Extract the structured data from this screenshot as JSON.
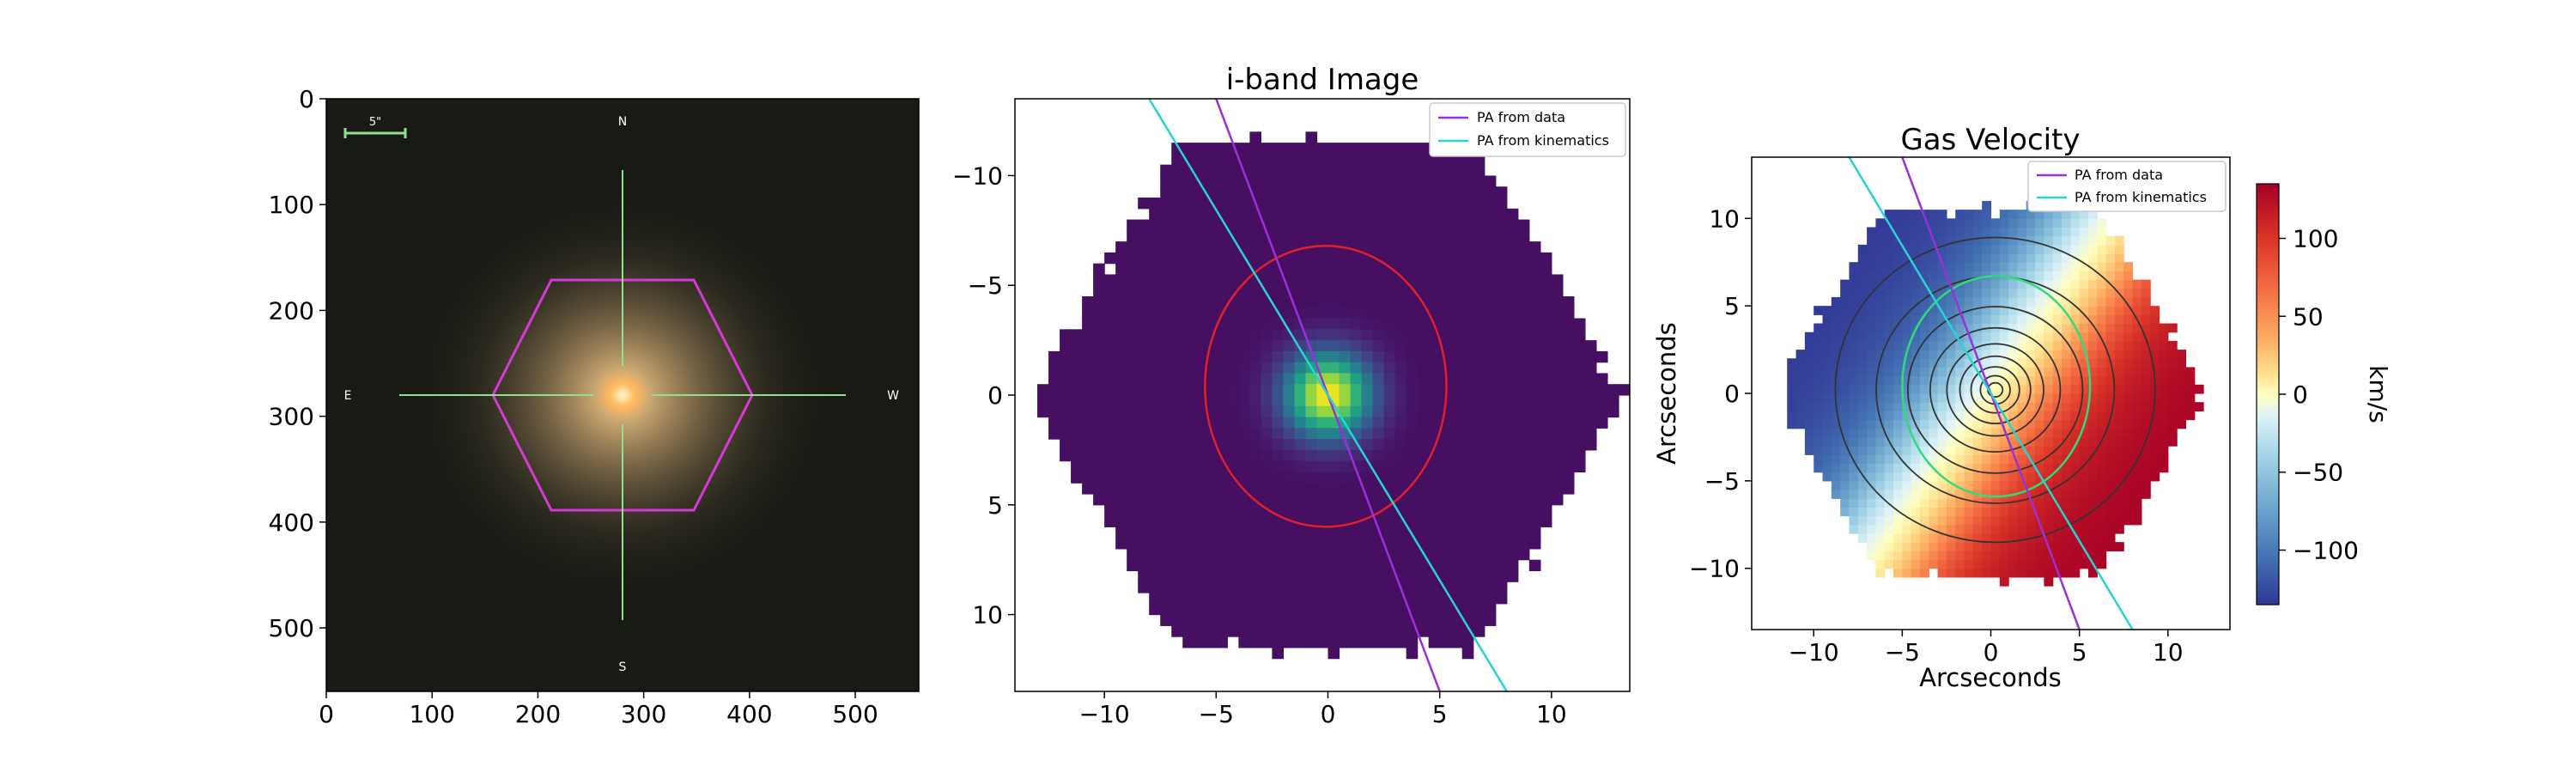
{
  "chart_data": [
    {
      "type": "image",
      "title": "",
      "x_ticks": [
        0,
        100,
        200,
        300,
        400,
        500
      ],
      "y_ticks": [
        0,
        100,
        200,
        300,
        400,
        500
      ],
      "xlim": [
        0,
        560
      ],
      "ylim": [
        560,
        0
      ],
      "compass": {
        "north": "N",
        "south": "S",
        "east": "E",
        "west": "W"
      },
      "scalebar_label": "5\"",
      "ifu_hexagon_color": "#d63ad6",
      "crosshair_color": "#8fe08f",
      "center": [
        280,
        280
      ]
    },
    {
      "type": "heatmap",
      "title": "i-band Image",
      "x_ticks": [
        -10,
        -5,
        0,
        5,
        10
      ],
      "y_ticks": [
        -10,
        -5,
        0,
        5,
        10
      ],
      "xlim": [
        -14,
        13.5
      ],
      "ylim": [
        13.5,
        -13.5
      ],
      "legend": {
        "position": "top-right",
        "entries": [
          {
            "label": "PA from data",
            "color": "#9b30d9"
          },
          {
            "label": "PA from kinematics",
            "color": "#27d3d3"
          }
        ]
      },
      "ellipse": {
        "center": [
          -0.1,
          -0.4
        ],
        "semi_axes": [
          5.4,
          6.4
        ],
        "color": "#e0202a"
      },
      "lines": [
        {
          "name": "PA from data",
          "points": [
            [
              -5,
              -13.5
            ],
            [
              5,
              13.5
            ]
          ]
        },
        {
          "name": "PA from kinematics",
          "points": [
            [
              -8,
              -13.5
            ],
            [
              8,
              13.5
            ]
          ]
        }
      ]
    },
    {
      "type": "heatmap",
      "title": "Gas Velocity",
      "xlabel": "Arcseconds",
      "ylabel": "Arcseconds",
      "x_ticks": [
        -10,
        -5,
        0,
        5,
        10
      ],
      "y_ticks": [
        10,
        5,
        0,
        -5,
        -10
      ],
      "xlim": [
        -13.5,
        13.5
      ],
      "ylim": [
        -13.5,
        13.5
      ],
      "legend": {
        "position": "top-right",
        "entries": [
          {
            "label": "PA from data",
            "color": "#9b30d9"
          },
          {
            "label": "PA from kinematics",
            "color": "#27d3d3"
          }
        ]
      },
      "ellipse": {
        "center": [
          0.3,
          0.4
        ],
        "semi_axes": [
          5.3,
          6.3
        ],
        "color": "#2fdc7d"
      },
      "colorbar": {
        "label": "km/s",
        "range": [
          -135,
          135
        ],
        "ticks": [
          100,
          50,
          0,
          -50,
          -100
        ],
        "tick_labels": [
          "100",
          "50",
          "0",
          "−50",
          "−100"
        ]
      },
      "lines": [
        {
          "name": "PA from data",
          "points": [
            [
              -5,
              13.5
            ],
            [
              5,
              -13.5
            ]
          ]
        },
        {
          "name": "PA from kinematics",
          "points": [
            [
              -8,
              13.5
            ],
            [
              8,
              -13.5
            ]
          ]
        }
      ]
    }
  ]
}
